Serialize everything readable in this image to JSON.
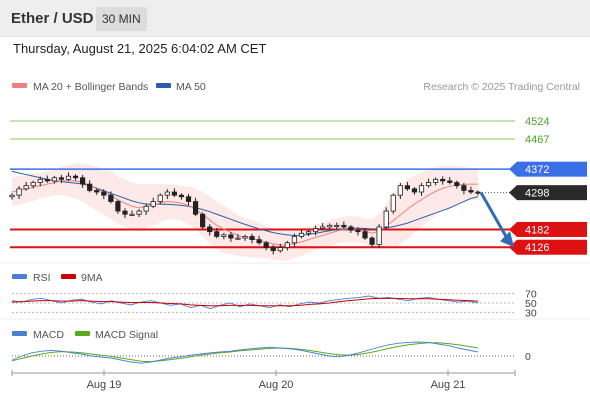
{
  "header": {
    "title": "Ether / USD",
    "timeframe": "30 MIN"
  },
  "timestamp": "Thursday, August 21, 2025 6:04:02 AM CET",
  "legend": {
    "ma20_label": "MA 20 + Bollinger Bands",
    "ma50_label": "MA 50",
    "ma20_color": "#f08080",
    "ma50_color": "#2c5fa8",
    "copyright": "Research © 2025 Trading Central"
  },
  "rsi_legend": {
    "rsi_label": "RSI",
    "ma_label": "9MA",
    "rsi_color": "#4a7fd6",
    "ma_color": "#cc0000"
  },
  "macd_legend": {
    "macd_label": "MACD",
    "signal_label": "MACD Signal",
    "macd_color": "#4a7fd6",
    "signal_color": "#5aaa1e"
  },
  "chart_data": {
    "type": "candlestick",
    "x_tick_labels": [
      "Aug 19",
      "Aug 20",
      "Aug 21"
    ],
    "price_ylim": [
      4070,
      4590
    ],
    "close_path": [
      4290,
      4310,
      4320,
      4330,
      4340,
      4335,
      4345,
      4340,
      4350,
      4345,
      4325,
      4305,
      4300,
      4290,
      4270,
      4240,
      4230,
      4230,
      4240,
      4255,
      4270,
      4290,
      4300,
      4290,
      4285,
      4270,
      4230,
      4190,
      4175,
      4160,
      4165,
      4155,
      4155,
      4160,
      4150,
      4140,
      4125,
      4115,
      4125,
      4140,
      4160,
      4170,
      4175,
      4185,
      4190,
      4195,
      4195,
      4190,
      4180,
      4175,
      4155,
      4135,
      4190,
      4240,
      4290,
      4320,
      4310,
      4300,
      4320,
      4330,
      4340,
      4335,
      4330,
      4320,
      4305,
      4300,
      4298
    ],
    "ma20_path": [
      4300,
      4305,
      4310,
      4315,
      4320,
      4325,
      4330,
      4335,
      4335,
      4335,
      4330,
      4320,
      4310,
      4300,
      4290,
      4275,
      4265,
      4255,
      4250,
      4255,
      4260,
      4265,
      4270,
      4268,
      4265,
      4258,
      4245,
      4230,
      4212,
      4195,
      4183,
      4173,
      4163,
      4157,
      4153,
      4148,
      4142,
      4137,
      4133,
      4133,
      4137,
      4143,
      4150,
      4157,
      4163,
      4170,
      4177,
      4182,
      4184,
      4182,
      4177,
      4170,
      4177,
      4193,
      4210,
      4228,
      4246,
      4262,
      4276,
      4290,
      4302,
      4312,
      4318,
      4322,
      4324,
      4325,
      4325
    ],
    "ma50_path": [
      4365,
      4360,
      4355,
      4350,
      4345,
      4340,
      4336,
      4333,
      4330,
      4328,
      4325,
      4320,
      4312,
      4304,
      4296,
      4288,
      4280,
      4272,
      4266,
      4262,
      4262,
      4262,
      4261,
      4260,
      4258,
      4255,
      4250,
      4245,
      4238,
      4230,
      4222,
      4214,
      4206,
      4198,
      4191,
      4184,
      4178,
      4172,
      4168,
      4165,
      4163,
      4164,
      4166,
      4170,
      4174,
      4178,
      4181,
      4184,
      4186,
      4186,
      4185,
      4184,
      4184,
      4187,
      4191,
      4196,
      4202,
      4210,
      4218,
      4226,
      4234,
      4242,
      4250,
      4260,
      4270,
      4280,
      4285
    ],
    "bb_width_path": [
      45,
      45,
      45,
      42,
      40,
      40,
      40,
      45,
      50,
      55,
      60,
      65,
      70,
      72,
      75,
      75,
      75,
      75,
      75,
      70,
      65,
      60,
      55,
      55,
      55,
      60,
      65,
      70,
      75,
      75,
      75,
      70,
      65,
      60,
      60,
      55,
      50,
      50,
      50,
      50,
      45,
      45,
      40,
      40,
      40,
      40,
      40,
      40,
      40,
      40,
      40,
      45,
      55,
      70,
      85,
      95,
      95,
      90,
      85,
      80,
      75,
      70,
      65,
      60,
      55,
      50,
      50
    ],
    "horizontal_lines": [
      {
        "label": "4524",
        "value": 4524,
        "color": "#4aa12a",
        "style": "resistance"
      },
      {
        "label": "4467",
        "value": 4467,
        "color": "#4aa12a",
        "style": "resistance"
      },
      {
        "label": "4372",
        "value": 4372,
        "color": "#3a6fe8",
        "style": "pivot"
      },
      {
        "label": "4298",
        "value": 4298,
        "color": "#2a2a2a",
        "style": "last-price"
      },
      {
        "label": "4182",
        "value": 4182,
        "color": "#dd1111",
        "style": "support"
      },
      {
        "label": "4126",
        "value": 4126,
        "color": "#dd1111",
        "style": "support"
      }
    ],
    "rsi": {
      "levels": [
        {
          "label": "70",
          "value": 70
        },
        {
          "label": "50",
          "value": 50
        },
        {
          "label": "30",
          "value": 30
        }
      ],
      "ylim": [
        20,
        80
      ],
      "rsi_path": [
        55,
        52,
        58,
        60,
        55,
        50,
        56,
        58,
        52,
        48,
        55,
        50,
        46,
        52,
        55,
        50,
        45,
        48,
        40,
        45,
        38,
        45,
        50,
        42,
        48,
        44,
        40,
        46,
        42,
        48,
        52,
        50,
        55,
        58,
        60,
        62,
        65,
        60,
        62,
        58,
        55,
        60,
        62,
        58,
        55,
        52,
        54,
        50
      ],
      "ma9_path": [
        52,
        53,
        54,
        55,
        55,
        54,
        54,
        55,
        54,
        53,
        53,
        52,
        51,
        51,
        51,
        50,
        49,
        48,
        46,
        45,
        44,
        44,
        45,
        45,
        45,
        44,
        44,
        44,
        44,
        45,
        47,
        48,
        50,
        53,
        55,
        57,
        59,
        60,
        60,
        60,
        59,
        59,
        59,
        58,
        57,
        56,
        55,
        54
      ]
    },
    "macd": {
      "zero_label": "0",
      "ylim": [
        -40,
        40
      ],
      "macd_path": [
        -10,
        0,
        8,
        12,
        14,
        12,
        8,
        5,
        0,
        -3,
        -5,
        -10,
        -15,
        -18,
        -15,
        -10,
        -5,
        -2,
        2,
        5,
        8,
        10,
        12,
        15,
        18,
        20,
        22,
        20,
        18,
        15,
        10,
        5,
        0,
        -2,
        2,
        8,
        15,
        22,
        28,
        32,
        34,
        35,
        34,
        30,
        26,
        20,
        15,
        10
      ],
      "signal_path": [
        -12,
        -6,
        0,
        5,
        9,
        11,
        10,
        8,
        5,
        2,
        -1,
        -5,
        -9,
        -13,
        -14,
        -12,
        -9,
        -6,
        -2,
        2,
        5,
        8,
        10,
        13,
        15,
        17,
        19,
        20,
        19,
        17,
        14,
        10,
        6,
        3,
        2,
        4,
        8,
        13,
        19,
        24,
        28,
        31,
        33,
        33,
        31,
        28,
        24,
        20
      ]
    }
  }
}
